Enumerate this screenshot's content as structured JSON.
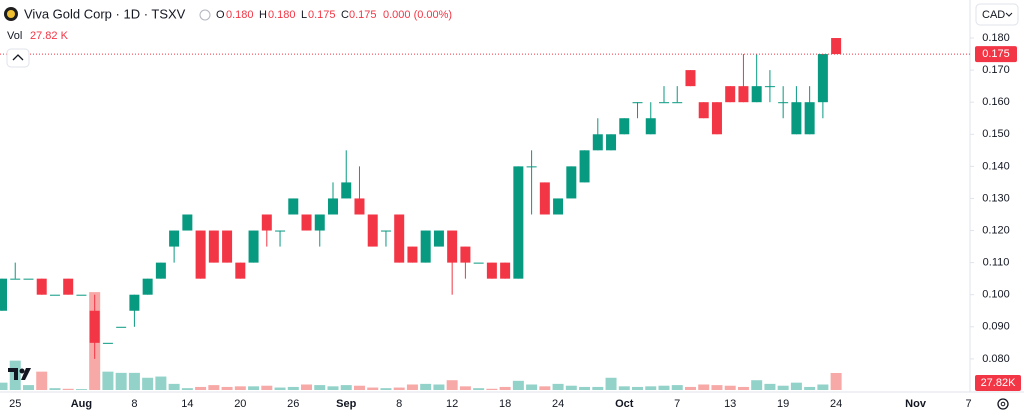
{
  "chart_data": {
    "type": "candlestick",
    "title": "Viva Gold Corp · 1D · TSXV",
    "legend": {
      "open_key": "O",
      "open": "0.180",
      "high_key": "H",
      "high": "0.180",
      "low_key": "L",
      "low": "0.175",
      "close_key": "C",
      "close": "0.175",
      "change": "0.000 (0.00%)"
    },
    "volume_title": "Vol",
    "volume_value": "27.82 K",
    "currency": "CAD",
    "categories": [
      null,
      "25",
      null,
      null,
      null,
      null,
      "Aug",
      null,
      null,
      null,
      "8",
      null,
      null,
      null,
      "14",
      null,
      null,
      null,
      "20",
      null,
      null,
      null,
      "26",
      null,
      null,
      null,
      "Sep",
      null,
      null,
      null,
      "8",
      null,
      null,
      null,
      "12",
      null,
      null,
      null,
      "18",
      null,
      null,
      null,
      "24",
      null,
      null,
      null,
      null,
      "Oct",
      null,
      null,
      null,
      "7",
      null,
      null,
      null,
      "13",
      null,
      null,
      null,
      "19",
      null,
      null,
      null,
      "24",
      null,
      null,
      null,
      null,
      null,
      "Nov",
      null,
      null,
      null,
      "7"
    ],
    "open": [
      0.095,
      0.105,
      0.105,
      0.105,
      0.1,
      0.105,
      0.1,
      0.095,
      0.085,
      0.09,
      0.095,
      0.1,
      0.105,
      0.115,
      0.12,
      0.12,
      0.12,
      0.12,
      0.11,
      0.11,
      0.125,
      0.12,
      0.125,
      0.125,
      0.12,
      0.125,
      0.13,
      0.13,
      0.125,
      0.12,
      0.125,
      0.115,
      0.11,
      0.115,
      0.12,
      0.115,
      0.11,
      0.11,
      0.11,
      0.105,
      0.14,
      0.135,
      0.125,
      0.13,
      0.135,
      0.145,
      0.145,
      0.15,
      0.16,
      0.15,
      0.16,
      0.16,
      0.17,
      0.16,
      0.16,
      0.165,
      0.165,
      0.16,
      0.165,
      0.16,
      0.15,
      0.15,
      0.16,
      0.18,
      null,
      null,
      null,
      null,
      null,
      null,
      null,
      null,
      null,
      null
    ],
    "high": [
      0.105,
      0.11,
      0.105,
      0.105,
      0.1,
      0.105,
      0.1,
      0.1,
      0.085,
      0.09,
      0.1,
      0.105,
      0.11,
      0.12,
      0.125,
      0.12,
      0.12,
      0.12,
      0.11,
      0.12,
      0.125,
      0.12,
      0.13,
      0.125,
      0.125,
      0.135,
      0.145,
      0.14,
      0.125,
      0.12,
      0.125,
      0.115,
      0.12,
      0.12,
      0.12,
      0.115,
      0.11,
      0.11,
      0.11,
      0.14,
      0.145,
      0.135,
      0.13,
      0.14,
      0.145,
      0.155,
      0.15,
      0.155,
      0.16,
      0.16,
      0.165,
      0.165,
      0.17,
      0.16,
      0.16,
      0.165,
      0.175,
      0.175,
      0.17,
      0.165,
      0.165,
      0.165,
      0.175,
      0.18,
      null,
      null,
      null,
      null,
      null,
      null,
      null,
      null,
      null,
      null
    ],
    "low": [
      0.095,
      0.105,
      0.105,
      0.1,
      0.1,
      0.1,
      0.1,
      0.08,
      0.085,
      0.09,
      0.09,
      0.1,
      0.105,
      0.11,
      0.12,
      0.105,
      0.11,
      0.11,
      0.105,
      0.11,
      0.115,
      0.115,
      0.125,
      0.12,
      0.115,
      0.125,
      0.13,
      0.125,
      0.115,
      0.115,
      0.11,
      0.11,
      0.11,
      0.115,
      0.1,
      0.105,
      0.11,
      0.105,
      0.105,
      0.105,
      0.125,
      0.125,
      0.125,
      0.13,
      0.135,
      0.145,
      0.145,
      0.15,
      0.155,
      0.15,
      0.16,
      0.16,
      0.165,
      0.155,
      0.15,
      0.16,
      0.16,
      0.16,
      0.16,
      0.155,
      0.15,
      0.15,
      0.155,
      0.175,
      null,
      null,
      null,
      null,
      null,
      null,
      null,
      null,
      null,
      null
    ],
    "close": [
      0.105,
      0.105,
      0.105,
      0.1,
      0.1,
      0.1,
      0.1,
      0.085,
      0.085,
      0.09,
      0.1,
      0.105,
      0.11,
      0.12,
      0.125,
      0.105,
      0.11,
      0.11,
      0.105,
      0.12,
      0.12,
      0.12,
      0.13,
      0.12,
      0.125,
      0.13,
      0.135,
      0.125,
      0.115,
      0.12,
      0.11,
      0.11,
      0.12,
      0.12,
      0.11,
      0.11,
      0.11,
      0.105,
      0.105,
      0.14,
      0.14,
      0.125,
      0.13,
      0.14,
      0.145,
      0.15,
      0.15,
      0.155,
      0.16,
      0.155,
      0.16,
      0.16,
      0.165,
      0.155,
      0.15,
      0.16,
      0.16,
      0.165,
      0.165,
      0.16,
      0.16,
      0.16,
      0.175,
      0.175,
      null,
      null,
      null,
      null,
      null,
      null,
      null,
      null,
      null,
      null
    ],
    "volume": [
      12000,
      48000,
      8000,
      30000,
      3000,
      2000,
      1500,
      160000,
      30000,
      28000,
      28000,
      20000,
      22000,
      10000,
      3000,
      5000,
      8000,
      5000,
      6000,
      6000,
      7000,
      4000,
      5000,
      9000,
      8000,
      6000,
      8000,
      7000,
      4000,
      3000,
      4000,
      9000,
      10000,
      9000,
      16000,
      6000,
      3000,
      2000,
      5000,
      15000,
      9000,
      6000,
      10000,
      7000,
      5000,
      5000,
      20000,
      6000,
      5000,
      6000,
      7000,
      8000,
      5000,
      9000,
      8000,
      7000,
      5000,
      16000,
      10000,
      7000,
      12000,
      5000,
      9000,
      27820,
      null,
      null,
      null,
      null,
      null,
      null,
      null,
      null,
      null,
      null
    ],
    "ylim": [
      0.0703,
      0.1825
    ],
    "yticks": [
      {
        "value": 0.08,
        "label": "0.080"
      },
      {
        "value": 0.09,
        "label": "0.090"
      },
      {
        "value": 0.1,
        "label": "0.100"
      },
      {
        "value": 0.11,
        "label": "0.110"
      },
      {
        "value": 0.12,
        "label": "0.120"
      },
      {
        "value": 0.13,
        "label": "0.130"
      },
      {
        "value": 0.14,
        "label": "0.140"
      },
      {
        "value": 0.15,
        "label": "0.150"
      },
      {
        "value": 0.16,
        "label": "0.160"
      },
      {
        "value": 0.17,
        "label": "0.170"
      },
      {
        "value": 0.18,
        "label": "0.180"
      }
    ],
    "volume_ylim": [
      0,
      170000
    ],
    "last_price": {
      "value": 0.175,
      "label": "0.175"
    },
    "last_volume": {
      "value": 27820,
      "label": "27.82K"
    },
    "up_color": "#089981",
    "down_color": "#f23645",
    "up_volume_color": "#92d2c8",
    "down_volume_color": "#f7a9a7"
  }
}
